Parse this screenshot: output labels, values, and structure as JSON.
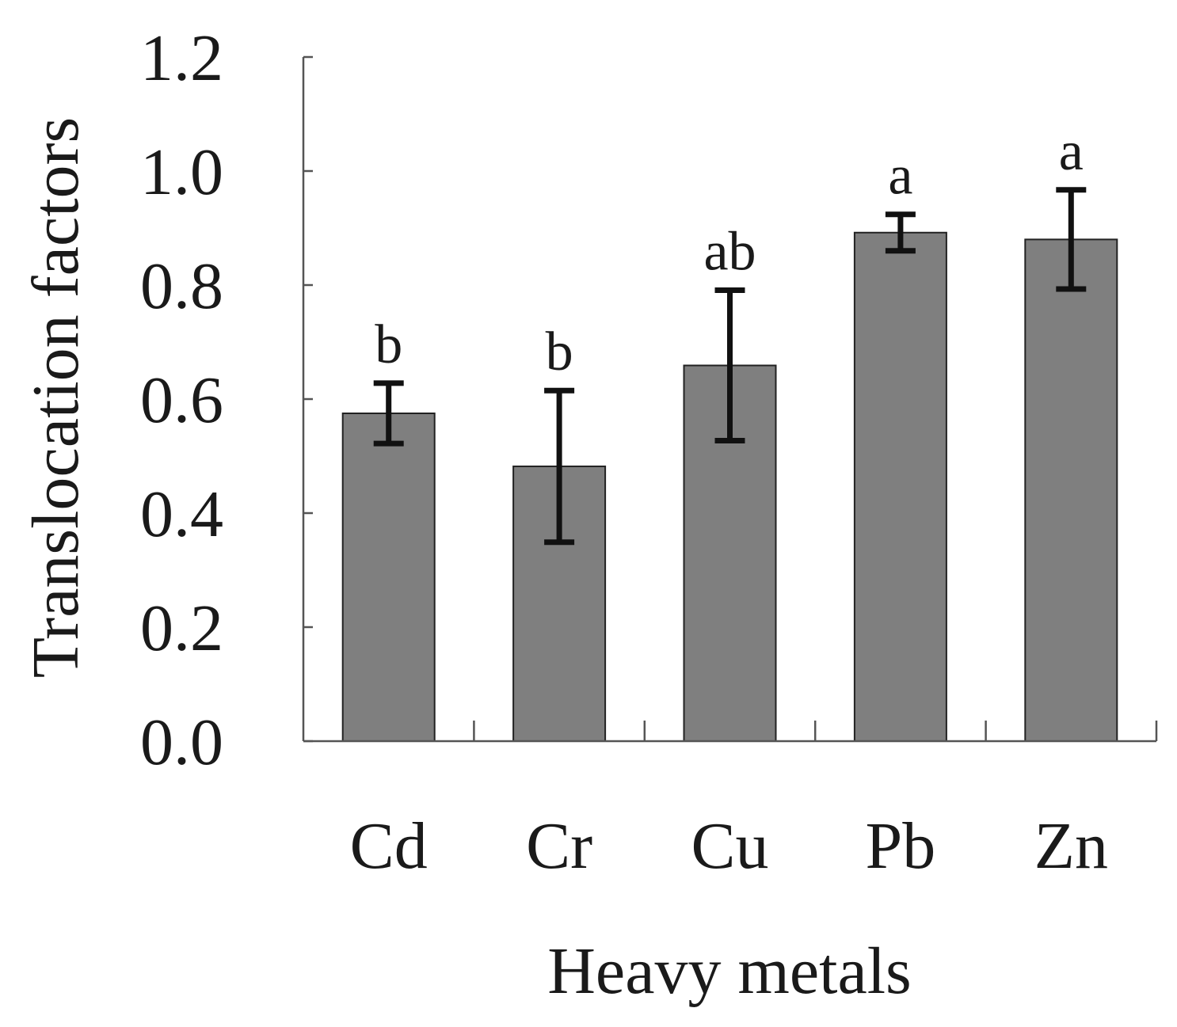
{
  "chart_data": {
    "type": "bar",
    "categories": [
      "Cd",
      "Cr",
      "Cu",
      "Pb",
      "Zn"
    ],
    "values": [
      0.575,
      0.482,
      0.659,
      0.892,
      0.88
    ],
    "error": [
      0.053,
      0.133,
      0.132,
      0.032,
      0.087
    ],
    "significance": [
      "b",
      "b",
      "ab",
      "a",
      "a"
    ],
    "xlabel": "Heavy metals",
    "ylabel": "Translocation factors",
    "ylim": [
      0,
      1.2
    ],
    "yticks": [
      "0.0",
      "0.2",
      "0.4",
      "0.6",
      "0.8",
      "1.0",
      "1.2"
    ],
    "grid": false,
    "legend": "none",
    "bar_color": "#7f7f7f",
    "error_bar_color": "#111111"
  }
}
